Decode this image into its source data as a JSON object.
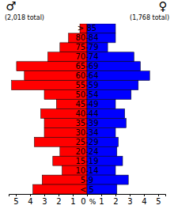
{
  "chart_data": {
    "type": "bar",
    "orientation": "horizontal",
    "categories": [
      "> 85",
      "80-84",
      "75-79",
      "70-74",
      "65-69",
      "60-64",
      "55-59",
      "50-54",
      "45-49",
      "40-44",
      "35-39",
      "30-34",
      "25-29",
      "20-24",
      "15-19",
      "10-14",
      "5-9",
      "< 5"
    ],
    "series": [
      {
        "name": "♂",
        "subtitle": "(2,018 total)",
        "color": "#ff0000",
        "values": [
          0.5,
          1.3,
          1.9,
          2.75,
          4.95,
          4.4,
          5.3,
          3.0,
          2.15,
          3.25,
          3.0,
          3.0,
          3.7,
          1.9,
          2.4,
          1.75,
          3.15,
          3.8
        ]
      },
      {
        "name": "♀",
        "subtitle": "(1,768 total)",
        "color": "#0000ff",
        "values": [
          2.0,
          2.0,
          1.45,
          3.3,
          3.75,
          4.4,
          3.6,
          3.1,
          2.0,
          2.65,
          2.75,
          2.0,
          2.2,
          2.1,
          2.5,
          2.0,
          2.9,
          2.1
        ]
      }
    ],
    "x_label": "%",
    "xlim": [
      0,
      5.5
    ],
    "xticks": [
      0,
      1,
      2,
      3,
      4,
      5
    ]
  }
}
